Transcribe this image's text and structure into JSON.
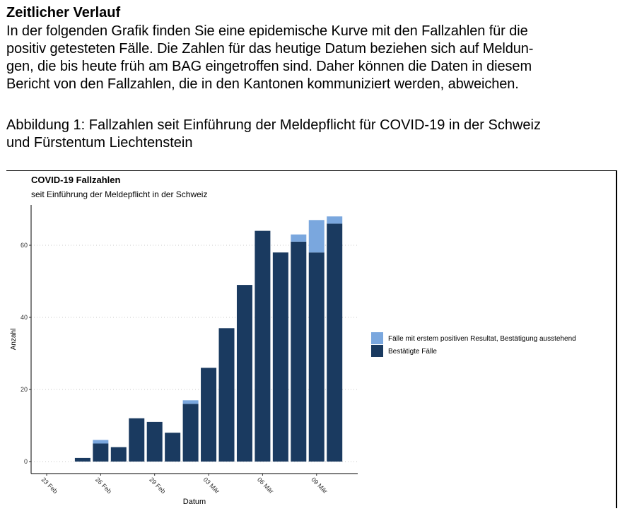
{
  "document": {
    "section_title": "Zeitlicher Verlauf",
    "intro_lines": [
      "In der folgenden Grafik finden Sie eine epidemische Kurve mit den Fallzahlen für die",
      "positiv getesteten Fälle. Die Zahlen für das heutige Datum beziehen sich auf Meldun-",
      "gen, die bis heute früh am BAG eingetroffen sind. Daher können die Daten in diesem",
      "Bericht von den Fallzahlen, die in den Kantonen kommuniziert werden, abweichen."
    ],
    "figure_caption_lines": [
      "Abbildung 1: Fallzahlen seit Einführung der Meldepflicht für COVID-19 in der Schweiz",
      "und Fürstentum Liechtenstein"
    ]
  },
  "chart_data": {
    "type": "bar",
    "stacked": true,
    "title": "COVID-19 Fallzahlen",
    "subtitle": "seit Einführung der Meldepflicht in der Schweiz",
    "xlabel": "Datum",
    "ylabel": "Anzahl",
    "categories": [
      "2020-02-23",
      "2020-02-24",
      "2020-02-25",
      "2020-02-26",
      "2020-02-27",
      "2020-02-28",
      "2020-02-29",
      "2020-03-01",
      "2020-03-02",
      "2020-03-03",
      "2020-03-04",
      "2020-03-05",
      "2020-03-06",
      "2020-03-07",
      "2020-03-08",
      "2020-03-09",
      "2020-03-10"
    ],
    "x_ticks": [
      "23 Feb",
      "26 Feb",
      "29 Feb",
      "03 Mär",
      "06 Mär",
      "09 Mär"
    ],
    "x_tick_categories": [
      "2020-02-23",
      "2020-02-26",
      "2020-02-29",
      "2020-03-03",
      "2020-03-06",
      "2020-03-09"
    ],
    "y_ticks": [
      0,
      20,
      40,
      60
    ],
    "ylim": [
      0,
      70
    ],
    "grid": "horizontal dotted",
    "legend_position": "right",
    "series": [
      {
        "name": "Bestätigte Fälle",
        "color": "#1a3a60",
        "values": [
          0,
          0,
          1,
          5,
          4,
          12,
          11,
          8,
          16,
          26,
          37,
          49,
          64,
          58,
          61,
          58,
          66
        ]
      },
      {
        "name": "Fälle mit erstem positiven Resultat, Bestätigung ausstehend",
        "color": "#7aa7de",
        "values": [
          0,
          0,
          0,
          1,
          0,
          0,
          0,
          0,
          1,
          0,
          0,
          0,
          0,
          0,
          2,
          9,
          2
        ]
      }
    ],
    "legend_order": [
      1,
      0
    ]
  }
}
